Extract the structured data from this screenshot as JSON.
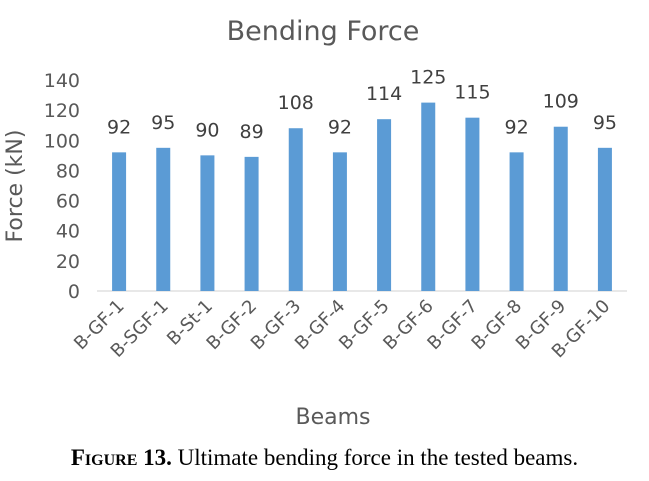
{
  "chart_data": {
    "type": "bar",
    "title": "Bending Force",
    "xlabel": "Beams",
    "ylabel": "Force (kN)",
    "categories": [
      "B-GF-1",
      "B-SGF-1",
      "B-St-1",
      "B-GF-2",
      "B-GF-3",
      "B-GF-4",
      "B-GF-5",
      "B-GF-6",
      "B-GF-7",
      "B-GF-8",
      "B-GF-9",
      "B-GF-10"
    ],
    "values": [
      92,
      95,
      90,
      89,
      108,
      92,
      114,
      125,
      115,
      92,
      109,
      95
    ],
    "ylim": [
      0,
      140
    ],
    "yticks": [
      0,
      20,
      40,
      60,
      80,
      100,
      120,
      140
    ],
    "grid": false,
    "legend": "none",
    "bar_color": "#5b9bd5"
  },
  "caption": {
    "label": "Figure 13.",
    "text": " Ultimate bending force in the tested beams."
  }
}
